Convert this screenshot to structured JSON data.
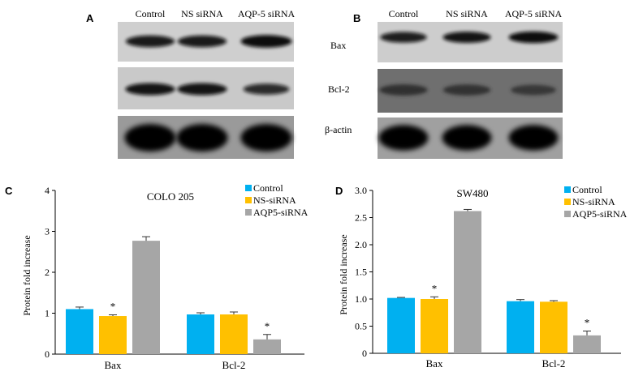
{
  "panel_letters": {
    "a": "A",
    "b": "B",
    "c": "C",
    "d": "D"
  },
  "blot_a": {
    "lanes": [
      "Control",
      "NS siRNA",
      "AQP-5 siRNA"
    ],
    "rows": [
      {
        "label": "Bax",
        "bands": [
          0.85,
          0.85,
          1.0
        ],
        "style": "dark"
      },
      {
        "label": "Bcl-2",
        "bands": [
          0.9,
          0.9,
          0.65
        ],
        "style": "dark"
      },
      {
        "label": "β-actin",
        "bands": [
          1.0,
          1.0,
          1.0
        ],
        "style": "smear"
      }
    ]
  },
  "blot_b": {
    "lanes": [
      "Control",
      "NS siRNA",
      "AQP-5 siRNA"
    ],
    "rows": [
      {
        "label": "Bax",
        "bands": [
          0.8,
          0.9,
          1.0
        ],
        "style": "dark"
      },
      {
        "label": "Bcl-2",
        "bands": [
          0.9,
          0.85,
          0.7
        ],
        "style": "gray"
      },
      {
        "label": "β-actin",
        "bands": [
          1.0,
          1.0,
          1.0
        ],
        "style": "smear"
      }
    ]
  },
  "row_labels": [
    "Bax",
    "Bcl-2",
    "β-actin"
  ],
  "colors": {
    "control": "#00b0f0",
    "ns": "#ffc000",
    "aqp5": "#a6a6a6",
    "error": "#333333"
  },
  "chart_data": [
    {
      "type": "bar",
      "title": "COLO 205",
      "ylabel": "Protein fold increase",
      "xlabel": "",
      "ylim": [
        0,
        4
      ],
      "yticks": [
        "0",
        "1",
        "2",
        "3",
        "4"
      ],
      "categories": [
        "Bax",
        "Bcl-2"
      ],
      "series": [
        {
          "name": "Control",
          "values": [
            1.1,
            0.97
          ],
          "errors": [
            0.05,
            0.04
          ]
        },
        {
          "name": "NS-siRNA",
          "values": [
            0.93,
            0.97
          ],
          "errors": [
            0.03,
            0.06
          ]
        },
        {
          "name": "AQP5-siRNA",
          "values": [
            2.77,
            0.36
          ],
          "errors": [
            0.1,
            0.12
          ]
        }
      ],
      "significance": [
        "",
        "*",
        "",
        "",
        "",
        "*"
      ],
      "legend_position": "top-right"
    },
    {
      "type": "bar",
      "title": "SW480",
      "ylabel": "Protein fold increase",
      "xlabel": "",
      "ylim": [
        0,
        3.0
      ],
      "yticks": [
        "0",
        "0.5",
        "1.0",
        "1.5",
        "2.0",
        "2.5",
        "3.0"
      ],
      "categories": [
        "Bax",
        "Bcl-2"
      ],
      "series": [
        {
          "name": "Control",
          "values": [
            1.02,
            0.96
          ],
          "errors": [
            0.01,
            0.03
          ]
        },
        {
          "name": "NS-siRNA",
          "values": [
            1.0,
            0.95
          ],
          "errors": [
            0.04,
            0.02
          ]
        },
        {
          "name": "AQP5-siRNA",
          "values": [
            2.62,
            0.33
          ],
          "errors": [
            0.03,
            0.08
          ]
        }
      ],
      "significance": [
        "",
        "*",
        "",
        "",
        "",
        "*"
      ],
      "legend_position": "top-right"
    }
  ]
}
